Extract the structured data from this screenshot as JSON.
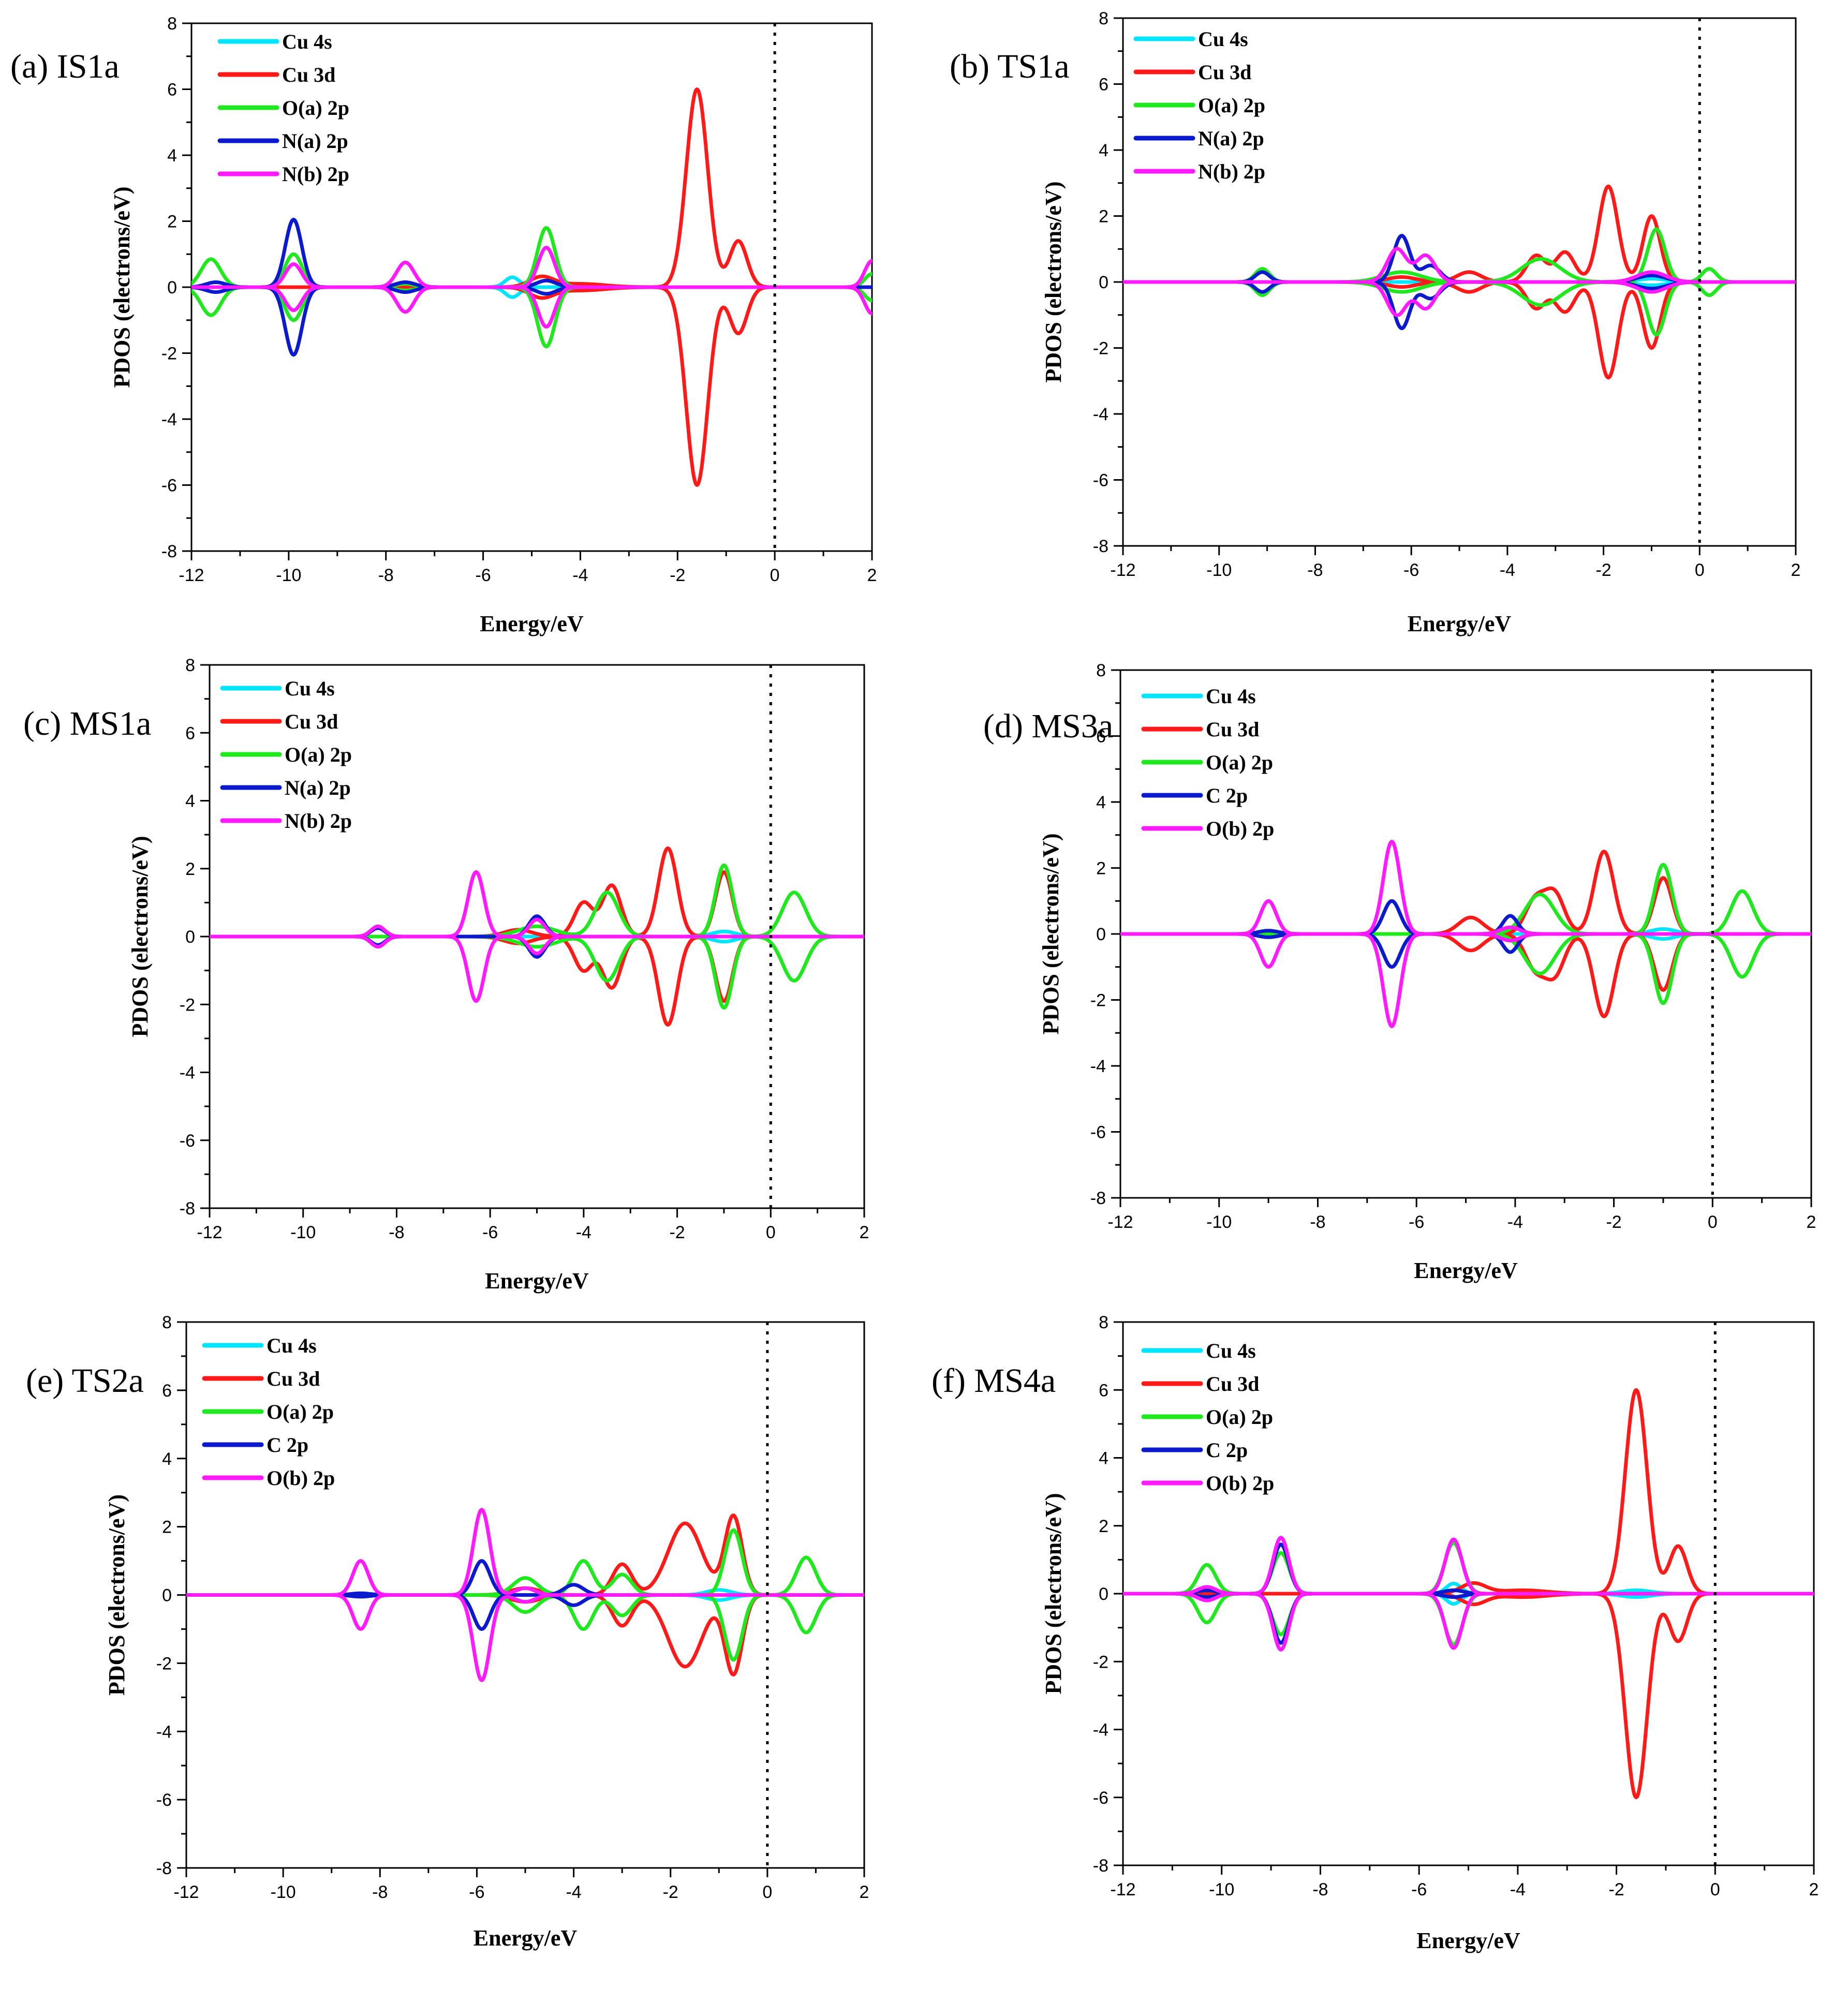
{
  "figure": "Projected density of states (PDOS) panels",
  "colors": {
    "cu4s": "#00e5ff",
    "cu3d": "#ff1a1a",
    "green": "#1fe81f",
    "blue": "#0a1acc",
    "magenta": "#ff1aff",
    "axis": "#000000"
  },
  "chart_data": [
    {
      "type": "line",
      "panel": "(a) IS1a",
      "xlabel": "Energy/eV",
      "ylabel": "PDOS (electrons/eV)",
      "xlim": [
        -12,
        2
      ],
      "ylim": [
        -8,
        8
      ],
      "xticks": [
        -12,
        -10,
        -8,
        -6,
        -4,
        -2,
        0,
        2
      ],
      "yticks": [
        -8,
        -6,
        -4,
        -2,
        0,
        2,
        4,
        6,
        8
      ],
      "fermi_level": 0,
      "legend": [
        "Cu 4s",
        "Cu 3d",
        "O(a) 2p",
        "N(a) 2p",
        "N(b) 2p"
      ],
      "series": [
        {
          "name": "Cu 4s",
          "color_key": "cu4s",
          "peaks": [
            [
              -5.4,
              0.3,
              0.15
            ]
          ]
        },
        {
          "name": "Cu 3d",
          "color_key": "cu3d",
          "peaks": [
            [
              -4.8,
              0.3,
              0.25
            ],
            [
              -4.0,
              0.1,
              0.5
            ],
            [
              -1.6,
              6.0,
              0.22
            ],
            [
              -0.75,
              1.4,
              0.18
            ]
          ]
        },
        {
          "name": "O(a) 2p",
          "color_key": "green",
          "peaks": [
            [
              -11.6,
              0.85,
              0.2
            ],
            [
              -9.9,
              1.0,
              0.18
            ],
            [
              -7.6,
              0.1,
              0.2
            ],
            [
              -4.7,
              1.8,
              0.18
            ],
            [
              2.0,
              0.4,
              0.15
            ]
          ]
        },
        {
          "name": "N(a) 2p",
          "color_key": "blue",
          "peaks": [
            [
              -11.5,
              0.15,
              0.2
            ],
            [
              -9.9,
              2.05,
              0.17
            ],
            [
              -7.6,
              0.15,
              0.2
            ],
            [
              -4.7,
              0.2,
              0.2
            ]
          ]
        },
        {
          "name": "N(b) 2p",
          "color_key": "magenta",
          "peaks": [
            [
              -9.9,
              0.7,
              0.17
            ],
            [
              -7.6,
              0.75,
              0.18
            ],
            [
              -4.7,
              1.2,
              0.17
            ],
            [
              2.0,
              0.8,
              0.15
            ]
          ]
        }
      ]
    },
    {
      "type": "line",
      "panel": "(b) TS1a",
      "xlabel": "Energy/eV",
      "ylabel": "PDOS (electrons/eV)",
      "xlim": [
        -12,
        2
      ],
      "ylim": [
        -8,
        8
      ],
      "xticks": [
        -12,
        -10,
        -8,
        -6,
        -4,
        -2,
        0,
        2
      ],
      "yticks": [
        -8,
        -6,
        -4,
        -2,
        0,
        2,
        4,
        6,
        8
      ],
      "fermi_level": 0,
      "legend": [
        "Cu 4s",
        "Cu 3d",
        "O(a) 2p",
        "N(a) 2p",
        "N(b) 2p"
      ],
      "series": [
        {
          "name": "Cu 4s",
          "color_key": "cu4s",
          "peaks": [
            [
              -1.0,
              0.1,
              0.3
            ]
          ]
        },
        {
          "name": "Cu 3d",
          "color_key": "cu3d",
          "peaks": [
            [
              -6.2,
              0.15,
              0.3
            ],
            [
              -4.8,
              0.3,
              0.25
            ],
            [
              -3.4,
              0.8,
              0.2
            ],
            [
              -2.8,
              0.9,
              0.2
            ],
            [
              -1.9,
              2.9,
              0.2
            ],
            [
              -1.0,
              2.0,
              0.18
            ]
          ]
        },
        {
          "name": "O(a) 2p",
          "color_key": "green",
          "peaks": [
            [
              -9.1,
              0.4,
              0.15
            ],
            [
              -6.2,
              0.3,
              0.4
            ],
            [
              -3.3,
              0.7,
              0.4
            ],
            [
              -0.9,
              1.6,
              0.18
            ],
            [
              0.2,
              0.4,
              0.15
            ]
          ]
        },
        {
          "name": "N(a) 2p",
          "color_key": "blue",
          "peaks": [
            [
              -9.1,
              0.3,
              0.15
            ],
            [
              -6.2,
              1.4,
              0.17
            ],
            [
              -5.6,
              0.5,
              0.2
            ],
            [
              -1.0,
              0.2,
              0.3
            ]
          ]
        },
        {
          "name": "N(b) 2p",
          "color_key": "magenta",
          "peaks": [
            [
              -6.3,
              1.0,
              0.2
            ],
            [
              -5.7,
              0.8,
              0.2
            ],
            [
              -1.0,
              0.3,
              0.3
            ]
          ]
        }
      ]
    },
    {
      "type": "line",
      "panel": "(c) MS1a",
      "xlabel": "Energy/eV",
      "ylabel": "PDOS (electrons/eV)",
      "xlim": [
        -12,
        2
      ],
      "ylim": [
        -8,
        8
      ],
      "xticks": [
        -12,
        -10,
        -8,
        -6,
        -4,
        -2,
        0,
        2
      ],
      "yticks": [
        -8,
        -6,
        -4,
        -2,
        0,
        2,
        4,
        6,
        8
      ],
      "fermi_level": 0,
      "legend": [
        "Cu 4s",
        "Cu 3d",
        "O(a) 2p",
        "N(a) 2p",
        "N(b) 2p"
      ],
      "series": [
        {
          "name": "Cu 4s",
          "color_key": "cu4s",
          "peaks": [
            [
              -1.0,
              0.15,
              0.25
            ]
          ]
        },
        {
          "name": "Cu 3d",
          "color_key": "cu3d",
          "peaks": [
            [
              -5.4,
              0.2,
              0.3
            ],
            [
              -4.0,
              1.0,
              0.2
            ],
            [
              -3.4,
              1.5,
              0.2
            ],
            [
              -2.2,
              2.6,
              0.2
            ],
            [
              -1.0,
              1.9,
              0.18
            ]
          ]
        },
        {
          "name": "O(a) 2p",
          "color_key": "green",
          "peaks": [
            [
              -5.0,
              0.3,
              0.4
            ],
            [
              -3.5,
              1.3,
              0.25
            ],
            [
              -1.0,
              2.1,
              0.18
            ],
            [
              0.5,
              1.3,
              0.25
            ]
          ]
        },
        {
          "name": "N(a) 2p",
          "color_key": "blue",
          "peaks": [
            [
              -8.4,
              0.25,
              0.15
            ],
            [
              -5.0,
              0.6,
              0.17
            ]
          ]
        },
        {
          "name": "N(b) 2p",
          "color_key": "magenta",
          "peaks": [
            [
              -8.4,
              0.3,
              0.15
            ],
            [
              -6.3,
              1.9,
              0.17
            ],
            [
              -5.0,
              0.5,
              0.17
            ]
          ]
        }
      ]
    },
    {
      "type": "line",
      "panel": "(d) MS3a",
      "xlabel": "Energy/eV",
      "ylabel": "PDOS (electrons/eV)",
      "xlim": [
        -12,
        2
      ],
      "ylim": [
        -8,
        8
      ],
      "xticks": [
        -12,
        -10,
        -8,
        -6,
        -4,
        -2,
        0,
        2
      ],
      "yticks": [
        -8,
        -6,
        -4,
        -2,
        0,
        2,
        4,
        6,
        8
      ],
      "fermi_level": 0,
      "legend": [
        "Cu 4s",
        "Cu 3d",
        "O(a) 2p",
        "C 2p",
        "O(b) 2p"
      ],
      "series": [
        {
          "name": "Cu 4s",
          "color_key": "cu4s",
          "peaks": [
            [
              -1.0,
              0.15,
              0.25
            ]
          ]
        },
        {
          "name": "Cu 3d",
          "color_key": "cu3d",
          "peaks": [
            [
              -4.9,
              0.5,
              0.25
            ],
            [
              -3.6,
              1.0,
              0.2
            ],
            [
              -3.2,
              1.2,
              0.2
            ],
            [
              -2.2,
              2.5,
              0.2
            ],
            [
              -1.0,
              1.7,
              0.18
            ]
          ]
        },
        {
          "name": "O(a) 2p",
          "color_key": "green",
          "peaks": [
            [
              -3.5,
              1.2,
              0.3
            ],
            [
              -1.0,
              2.1,
              0.18
            ],
            [
              0.6,
              1.3,
              0.22
            ]
          ]
        },
        {
          "name": "C 2p",
          "color_key": "blue",
          "peaks": [
            [
              -9.0,
              0.1,
              0.2
            ],
            [
              -6.5,
              1.0,
              0.17
            ],
            [
              -4.1,
              0.55,
              0.15
            ]
          ]
        },
        {
          "name": "O(b) 2p",
          "color_key": "magenta",
          "peaks": [
            [
              -9.0,
              1.0,
              0.16
            ],
            [
              -6.5,
              2.8,
              0.17
            ],
            [
              -4.1,
              0.2,
              0.2
            ]
          ]
        }
      ]
    },
    {
      "type": "line",
      "panel": "(e) TS2a",
      "xlabel": "Energy/eV",
      "ylabel": "PDOS (electrons/eV)",
      "xlim": [
        -12,
        2
      ],
      "ylim": [
        -8,
        8
      ],
      "xticks": [
        -12,
        -10,
        -8,
        -6,
        -4,
        -2,
        0,
        2
      ],
      "yticks": [
        -8,
        -6,
        -4,
        -2,
        0,
        2,
        4,
        6,
        8
      ],
      "fermi_level": 0,
      "legend": [
        "Cu 4s",
        "Cu 3d",
        "O(a) 2p",
        "C 2p",
        "O(b) 2p"
      ],
      "series": [
        {
          "name": "Cu 4s",
          "color_key": "cu4s",
          "peaks": [
            [
              -1.0,
              0.15,
              0.25
            ]
          ]
        },
        {
          "name": "Cu 3d",
          "color_key": "cu3d",
          "peaks": [
            [
              -5.0,
              0.2,
              0.3
            ],
            [
              -3.0,
              0.9,
              0.2
            ],
            [
              -1.7,
              2.1,
              0.35
            ],
            [
              -0.7,
              2.3,
              0.18
            ]
          ]
        },
        {
          "name": "O(a) 2p",
          "color_key": "green",
          "peaks": [
            [
              -5.0,
              0.5,
              0.25
            ],
            [
              -3.8,
              1.0,
              0.2
            ],
            [
              -3.0,
              0.6,
              0.2
            ],
            [
              -0.7,
              1.9,
              0.18
            ],
            [
              0.8,
              1.1,
              0.2
            ]
          ]
        },
        {
          "name": "C 2p",
          "color_key": "blue",
          "peaks": [
            [
              -8.4,
              0.05,
              0.2
            ],
            [
              -5.9,
              1.0,
              0.17
            ],
            [
              -4.0,
              0.3,
              0.2
            ]
          ]
        },
        {
          "name": "O(b) 2p",
          "color_key": "magenta",
          "peaks": [
            [
              -8.4,
              1.0,
              0.16
            ],
            [
              -5.9,
              2.5,
              0.17
            ],
            [
              -5.0,
              0.2,
              0.2
            ]
          ]
        }
      ]
    },
    {
      "type": "line",
      "panel": "(f) MS4a",
      "xlabel": "Energy/eV",
      "ylabel": "PDOS (electrons/eV)",
      "xlim": [
        -12,
        2
      ],
      "ylim": [
        -8,
        8
      ],
      "xticks": [
        -12,
        -10,
        -8,
        -6,
        -4,
        -2,
        0,
        2
      ],
      "yticks": [
        -8,
        -6,
        -4,
        -2,
        0,
        2,
        4,
        6,
        8
      ],
      "fermi_level": 0,
      "legend": [
        "Cu 4s",
        "Cu 3d",
        "O(a) 2p",
        "C 2p",
        "O(b) 2p"
      ],
      "series": [
        {
          "name": "Cu 4s",
          "color_key": "cu4s",
          "peaks": [
            [
              -5.3,
              0.3,
              0.15
            ],
            [
              -1.6,
              0.1,
              0.3
            ]
          ]
        },
        {
          "name": "Cu 3d",
          "color_key": "cu3d",
          "peaks": [
            [
              -4.9,
              0.3,
              0.25
            ],
            [
              -3.9,
              0.1,
              0.5
            ],
            [
              -1.6,
              6.0,
              0.22
            ],
            [
              -0.75,
              1.4,
              0.18
            ]
          ]
        },
        {
          "name": "O(a) 2p",
          "color_key": "green",
          "peaks": [
            [
              -10.3,
              0.85,
              0.18
            ],
            [
              -8.8,
              1.2,
              0.17
            ],
            [
              -5.3,
              1.5,
              0.18
            ]
          ]
        },
        {
          "name": "C 2p",
          "color_key": "blue",
          "peaks": [
            [
              -10.3,
              0.1,
              0.2
            ],
            [
              -8.8,
              1.45,
              0.16
            ],
            [
              -5.3,
              0.1,
              0.2
            ]
          ]
        },
        {
          "name": "O(b) 2p",
          "color_key": "magenta",
          "peaks": [
            [
              -10.3,
              0.2,
              0.18
            ],
            [
              -8.8,
              1.65,
              0.16
            ],
            [
              -5.3,
              1.6,
              0.17
            ]
          ]
        }
      ]
    }
  ]
}
